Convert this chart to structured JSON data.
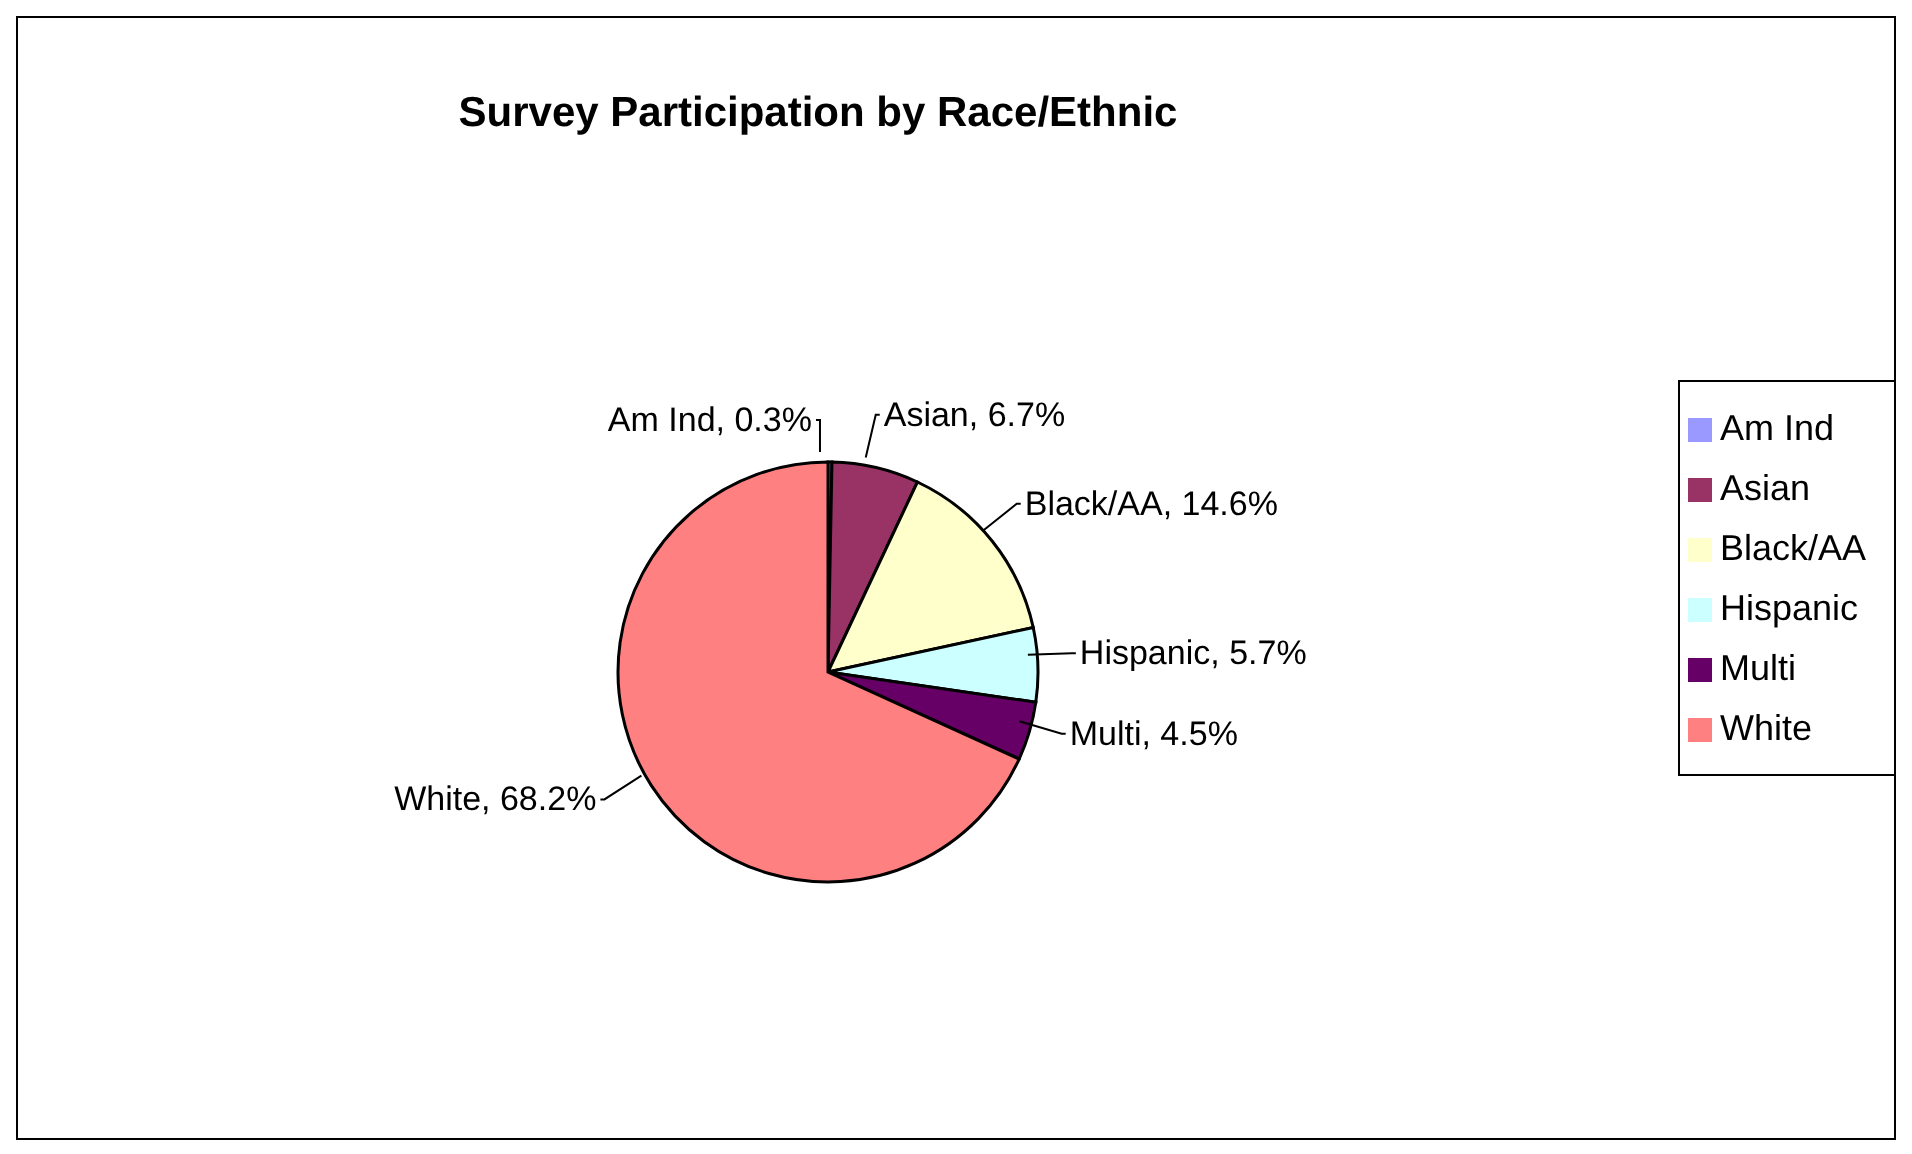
{
  "chart_data": {
    "type": "pie",
    "title": "Survey Participation by Race/Ethnic",
    "categories": [
      "Am Ind",
      "Asian",
      "Black/AA",
      "Hispanic",
      "Multi",
      "White"
    ],
    "values": [
      0.3,
      6.7,
      14.6,
      5.7,
      4.5,
      68.2
    ],
    "value_labels": [
      "Am Ind, 0.3%",
      "Asian, 6.7%",
      "Black/AA, 14.6%",
      "Hispanic, 5.7%",
      "Multi, 4.5%",
      "White, 68.2%"
    ],
    "colors": [
      "#9999ff",
      "#993366",
      "#ffffcc",
      "#ccffff",
      "#660066",
      "#ff8080"
    ],
    "legend": "right"
  }
}
